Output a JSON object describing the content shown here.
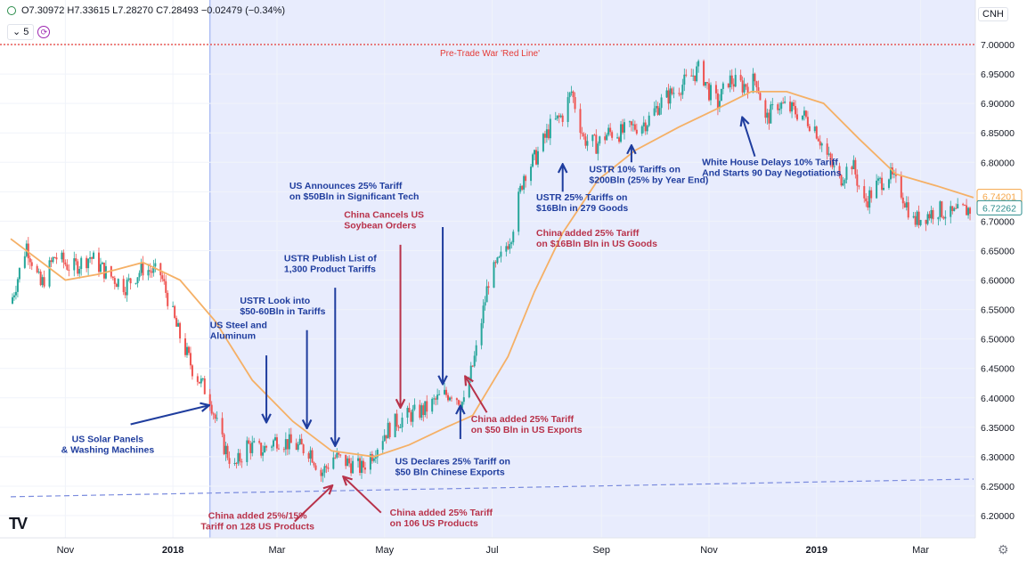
{
  "header": {
    "ohlc": "O7.30972 H7.33615 L7.28270 C7.28493 −0.02479 (−0.34%)",
    "interval_label": "5",
    "symbol": "CNH"
  },
  "chart_data": {
    "type": "candlestick",
    "ylim": [
      6.17,
      7.03
    ],
    "xlim": [
      "2017-10-01",
      "2019-03-31"
    ],
    "y_ticks": [
      "7.00000",
      "6.95000",
      "6.90000",
      "6.85000",
      "6.80000",
      "6.75000",
      "6.70000",
      "6.65000",
      "6.60000",
      "6.55000",
      "6.50000",
      "6.45000",
      "6.40000",
      "6.35000",
      "6.30000",
      "6.25000",
      "6.20000"
    ],
    "x_ticks": [
      {
        "label": "Nov",
        "date": "2017-11-01",
        "bold": false
      },
      {
        "label": "2018",
        "date": "2018-01-01",
        "bold": true
      },
      {
        "label": "Mar",
        "date": "2018-03-01",
        "bold": false
      },
      {
        "label": "May",
        "date": "2018-05-01",
        "bold": false
      },
      {
        "label": "Jul",
        "date": "2018-07-01",
        "bold": false
      },
      {
        "label": "Sep",
        "date": "2018-09-01",
        "bold": false
      },
      {
        "label": "Nov",
        "date": "2018-11-01",
        "bold": false
      },
      {
        "label": "2019",
        "date": "2019-01-01",
        "bold": true
      },
      {
        "label": "Mar",
        "date": "2019-03-01",
        "bold": false
      }
    ],
    "highlight_start": "2018-01-22",
    "red_line": {
      "value": 7.0,
      "label": "Pre-Trade War 'Red Line'",
      "color": "#e53935"
    },
    "support_line": {
      "from": [
        "2017-10-01",
        6.232
      ],
      "to": [
        "2019-03-31",
        6.262
      ],
      "color": "#7b8cde"
    },
    "price_labels": [
      {
        "value": 6.74201,
        "text": "6.74201",
        "color": "#f5a547"
      },
      {
        "value": 6.72262,
        "text": "6.72262",
        "color": "#2a8c8c"
      }
    ],
    "close_path": [
      [
        "2017-10-01",
        6.56
      ],
      [
        "2017-10-10",
        6.66
      ],
      [
        "2017-10-18",
        6.59
      ],
      [
        "2017-10-26",
        6.64
      ],
      [
        "2017-11-05",
        6.62
      ],
      [
        "2017-11-15",
        6.64
      ],
      [
        "2017-11-25",
        6.61
      ],
      [
        "2017-12-05",
        6.59
      ],
      [
        "2017-12-15",
        6.62
      ],
      [
        "2017-12-25",
        6.61
      ],
      [
        "2018-01-03",
        6.52
      ],
      [
        "2018-01-12",
        6.45
      ],
      [
        "2018-01-22",
        6.4
      ],
      [
        "2018-01-28",
        6.33
      ],
      [
        "2018-02-05",
        6.28
      ],
      [
        "2018-02-12",
        6.32
      ],
      [
        "2018-02-20",
        6.31
      ],
      [
        "2018-03-01",
        6.33
      ],
      [
        "2018-03-10",
        6.32
      ],
      [
        "2018-03-20",
        6.31
      ],
      [
        "2018-03-26",
        6.27
      ],
      [
        "2018-04-02",
        6.3
      ],
      [
        "2018-04-10",
        6.29
      ],
      [
        "2018-04-18",
        6.28
      ],
      [
        "2018-04-25",
        6.31
      ],
      [
        "2018-05-01",
        6.34
      ],
      [
        "2018-05-08",
        6.36
      ],
      [
        "2018-05-15",
        6.37
      ],
      [
        "2018-05-24",
        6.38
      ],
      [
        "2018-06-01",
        6.4
      ],
      [
        "2018-06-08",
        6.41
      ],
      [
        "2018-06-15",
        6.39
      ],
      [
        "2018-06-22",
        6.48
      ],
      [
        "2018-06-29",
        6.6
      ],
      [
        "2018-07-05",
        6.63
      ],
      [
        "2018-07-12",
        6.68
      ],
      [
        "2018-07-19",
        6.78
      ],
      [
        "2018-07-26",
        6.81
      ],
      [
        "2018-08-03",
        6.86
      ],
      [
        "2018-08-10",
        6.88
      ],
      [
        "2018-08-15",
        6.92
      ],
      [
        "2018-08-22",
        6.84
      ],
      [
        "2018-08-29",
        6.83
      ],
      [
        "2018-09-05",
        6.85
      ],
      [
        "2018-09-12",
        6.85
      ],
      [
        "2018-09-20",
        6.86
      ],
      [
        "2018-09-27",
        6.87
      ],
      [
        "2018-10-04",
        6.9
      ],
      [
        "2018-10-12",
        6.92
      ],
      [
        "2018-10-20",
        6.94
      ],
      [
        "2018-10-27",
        6.96
      ],
      [
        "2018-11-01",
        6.92
      ],
      [
        "2018-11-06",
        6.9
      ],
      [
        "2018-11-12",
        6.94
      ],
      [
        "2018-11-20",
        6.93
      ],
      [
        "2018-11-28",
        6.94
      ],
      [
        "2018-12-03",
        6.87
      ],
      [
        "2018-12-10",
        6.9
      ],
      [
        "2018-12-17",
        6.89
      ],
      [
        "2018-12-24",
        6.88
      ],
      [
        "2018-12-31",
        6.86
      ],
      [
        "2019-01-07",
        6.81
      ],
      [
        "2019-01-14",
        6.77
      ],
      [
        "2019-01-21",
        6.8
      ],
      [
        "2019-01-28",
        6.73
      ],
      [
        "2019-02-04",
        6.76
      ],
      [
        "2019-02-11",
        6.78
      ],
      [
        "2019-02-18",
        6.75
      ],
      [
        "2019-02-25",
        6.7
      ],
      [
        "2019-03-04",
        6.71
      ],
      [
        "2019-03-11",
        6.72
      ],
      [
        "2019-03-18",
        6.71
      ],
      [
        "2019-03-28",
        6.72
      ]
    ],
    "moving_average": [
      [
        "2017-10-01",
        6.67
      ],
      [
        "2017-11-01",
        6.6
      ],
      [
        "2017-11-20",
        6.61
      ],
      [
        "2017-12-15",
        6.63
      ],
      [
        "2018-01-05",
        6.6
      ],
      [
        "2018-01-25",
        6.53
      ],
      [
        "2018-02-15",
        6.43
      ],
      [
        "2018-03-10",
        6.36
      ],
      [
        "2018-04-01",
        6.31
      ],
      [
        "2018-04-25",
        6.3
      ],
      [
        "2018-05-15",
        6.32
      ],
      [
        "2018-06-05",
        6.35
      ],
      [
        "2018-06-20",
        6.37
      ],
      [
        "2018-07-10",
        6.47
      ],
      [
        "2018-07-25",
        6.58
      ],
      [
        "2018-08-10",
        6.68
      ],
      [
        "2018-08-30",
        6.77
      ],
      [
        "2018-09-20",
        6.82
      ],
      [
        "2018-10-15",
        6.86
      ],
      [
        "2018-11-05",
        6.89
      ],
      [
        "2018-11-25",
        6.92
      ],
      [
        "2018-12-15",
        6.92
      ],
      [
        "2019-01-05",
        6.9
      ],
      [
        "2019-01-25",
        6.84
      ],
      [
        "2019-02-15",
        6.78
      ],
      [
        "2019-03-10",
        6.76
      ],
      [
        "2019-03-31",
        6.74
      ]
    ],
    "annotations": [
      {
        "id": "solar",
        "lines": [
          "US Solar Panels",
          "& Washing Machines"
        ],
        "color": "#1f3d9e",
        "anchor": "middle",
        "label_at": [
          "2017-11-25",
          6.325
        ],
        "arrow_from": [
          "2017-12-08",
          6.355
        ],
        "arrow_to": [
          "2018-01-21",
          6.387
        ]
      },
      {
        "id": "steel",
        "lines": [
          "US Steel and",
          "Aluminum"
        ],
        "color": "#1f3d9e",
        "anchor": "start",
        "label_at": [
          "2018-01-22",
          6.518
        ],
        "arrow_from": [
          "2018-02-23",
          6.472
        ],
        "arrow_to": [
          "2018-02-23",
          6.36
        ]
      },
      {
        "id": "look",
        "lines": [
          "USTR Look into",
          "$50-60Bln in Tariffs"
        ],
        "color": "#1f3d9e",
        "anchor": "start",
        "label_at": [
          "2018-02-08",
          6.56
        ],
        "arrow_from": [
          "2018-03-18",
          6.515
        ],
        "arrow_to": [
          "2018-03-18",
          6.35
        ]
      },
      {
        "id": "list",
        "lines": [
          "USTR Publish List of",
          "1,300 Product Tariffs"
        ],
        "color": "#1f3d9e",
        "anchor": "start",
        "label_at": [
          "2018-03-05",
          6.632
        ],
        "arrow_from": [
          "2018-04-03",
          6.587
        ],
        "arrow_to": [
          "2018-04-03",
          6.32
        ]
      },
      {
        "id": "tech",
        "lines": [
          "US Announces 25% Tariff",
          "on $50Bln in Significant Tech"
        ],
        "color": "#1f3d9e",
        "anchor": "start",
        "label_at": [
          "2018-03-08",
          6.755
        ],
        "arrow_from": [
          "2018-06-03",
          6.69
        ],
        "arrow_to": [
          "2018-06-03",
          6.425
        ]
      },
      {
        "id": "soy",
        "lines": [
          "China Cancels US",
          "Soybean Orders"
        ],
        "color": "#b8324a",
        "anchor": "start",
        "label_at": [
          "2018-04-08",
          6.706
        ],
        "arrow_from": [
          "2018-05-10",
          6.66
        ],
        "arrow_to": [
          "2018-05-10",
          6.385
        ]
      },
      {
        "id": "cn128",
        "lines": [
          "China added 25%/15%",
          "Tariff on 128 US Products"
        ],
        "color": "#b8324a",
        "anchor": "middle",
        "label_at": [
          "2018-02-18",
          6.195
        ],
        "arrow_from": [
          "2018-03-11",
          6.19
        ],
        "arrow_to": [
          "2018-04-01",
          6.25
        ]
      },
      {
        "id": "cn106",
        "lines": [
          "China added 25% Tariff",
          "on 106 US Products"
        ],
        "color": "#b8324a",
        "anchor": "start",
        "label_at": [
          "2018-05-04",
          6.2
        ],
        "arrow_from": [
          "2018-04-29",
          6.205
        ],
        "arrow_to": [
          "2018-04-08",
          6.265
        ]
      },
      {
        "id": "us50",
        "lines": [
          "US Declares 25% Tariff on",
          "$50 Bln Chinese Exports"
        ],
        "color": "#1f3d9e",
        "anchor": "start",
        "label_at": [
          "2018-05-07",
          6.287
        ],
        "arrow_from": [
          "2018-06-13",
          6.33
        ],
        "arrow_to": [
          "2018-06-13",
          6.385
        ]
      },
      {
        "id": "cn50",
        "lines": [
          "China added 25% Tariff",
          "on $50 Bln in US Exports"
        ],
        "color": "#b8324a",
        "anchor": "start",
        "label_at": [
          "2018-06-19",
          6.359
        ],
        "arrow_from": [
          "2018-06-28",
          6.375
        ],
        "arrow_to": [
          "2018-06-16",
          6.435
        ]
      },
      {
        "id": "us16",
        "lines": [
          "USTR 25% Tariffs on",
          "$16Bln in 279 Goods"
        ],
        "color": "#1f3d9e",
        "anchor": "start",
        "label_at": [
          "2018-07-26",
          6.735
        ],
        "arrow_from": [
          "2018-08-10",
          6.75
        ],
        "arrow_to": [
          "2018-08-10",
          6.795
        ]
      },
      {
        "id": "cn16",
        "lines": [
          "China added 25% Tariff",
          "on $16Bln Bln in US Goods"
        ],
        "color": "#b8324a",
        "anchor": "start",
        "label_at": [
          "2018-07-26",
          6.675
        ],
        "arrow_from": null,
        "arrow_to": null
      },
      {
        "id": "us200",
        "lines": [
          "USTR 10% Tariffs on",
          "$200Bln (25% by Year End)"
        ],
        "color": "#1f3d9e",
        "anchor": "start",
        "label_at": [
          "2018-08-25",
          6.783
        ],
        "arrow_from": [
          "2018-09-18",
          6.8
        ],
        "arrow_to": [
          "2018-09-18",
          6.827
        ]
      },
      {
        "id": "whitehouse",
        "lines": [
          "White House Delays 10% Tariff",
          "And Starts 90 Day Negotiations"
        ],
        "color": "#1f3d9e",
        "anchor": "start",
        "label_at": [
          "2018-10-28",
          6.795
        ],
        "arrow_from": [
          "2018-11-27",
          6.81
        ],
        "arrow_to": [
          "2018-11-20",
          6.875
        ]
      }
    ]
  }
}
